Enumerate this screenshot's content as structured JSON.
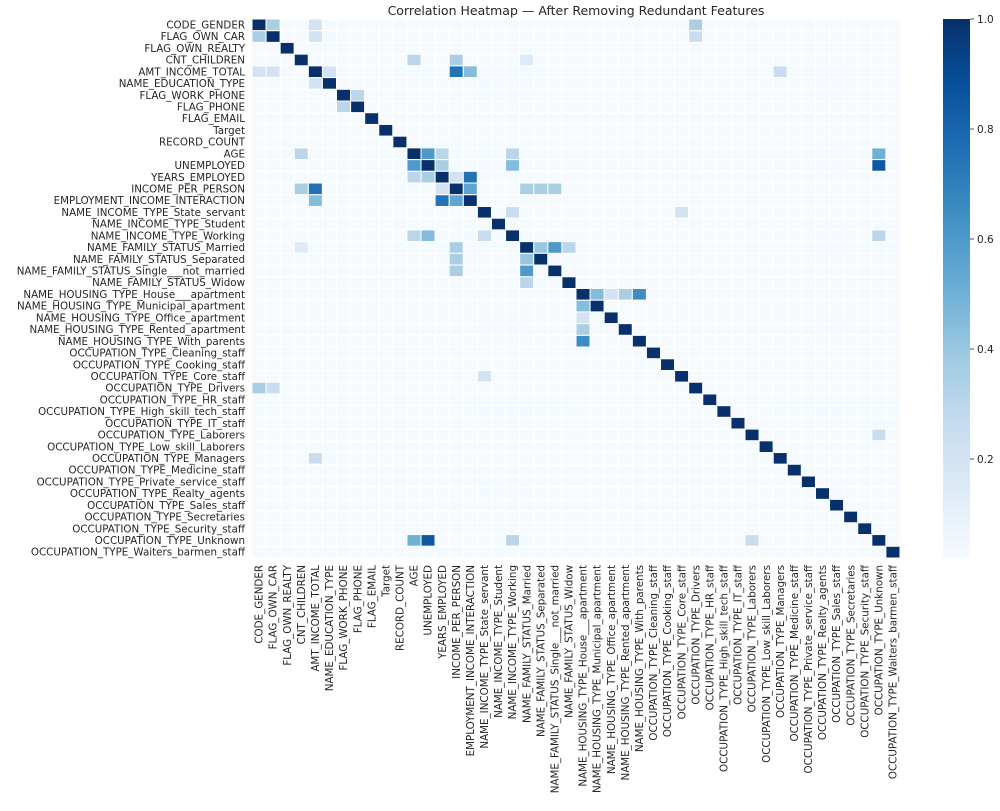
{
  "chart_data": {
    "type": "heatmap",
    "title": "Correlation Heatmap — After Removing Redundant Features",
    "xlabel": "",
    "ylabel": "",
    "labels": [
      "CODE_GENDER",
      "FLAG_OWN_CAR",
      "FLAG_OWN_REALTY",
      "CNT_CHILDREN",
      "AMT_INCOME_TOTAL",
      "NAME_EDUCATION_TYPE",
      "FLAG_WORK_PHONE",
      "FLAG_PHONE",
      "FLAG_EMAIL",
      "Target",
      "RECORD_COUNT",
      "AGE",
      "UNEMPLOYED",
      "YEARS_EMPLOYED",
      "INCOME_PER_PERSON",
      "EMPLOYMENT_INCOME_INTERACTION",
      "NAME_INCOME_TYPE_State_servant",
      "NAME_INCOME_TYPE_Student",
      "NAME_INCOME_TYPE_Working",
      "NAME_FAMILY_STATUS_Married",
      "NAME_FAMILY_STATUS_Separated",
      "NAME_FAMILY_STATUS_Single___not_married",
      "NAME_FAMILY_STATUS_Widow",
      "NAME_HOUSING_TYPE_House___apartment",
      "NAME_HOUSING_TYPE_Municipal_apartment",
      "NAME_HOUSING_TYPE_Office_apartment",
      "NAME_HOUSING_TYPE_Rented_apartment",
      "NAME_HOUSING_TYPE_With_parents",
      "OCCUPATION_TYPE_Cleaning_staff",
      "OCCUPATION_TYPE_Cooking_staff",
      "OCCUPATION_TYPE_Core_staff",
      "OCCUPATION_TYPE_Drivers",
      "OCCUPATION_TYPE_HR_staff",
      "OCCUPATION_TYPE_High_skill_tech_staff",
      "OCCUPATION_TYPE_IT_staff",
      "OCCUPATION_TYPE_Laborers",
      "OCCUPATION_TYPE_Low_skill_Laborers",
      "OCCUPATION_TYPE_Managers",
      "OCCUPATION_TYPE_Medicine_staff",
      "OCCUPATION_TYPE_Private_service_staff",
      "OCCUPATION_TYPE_Realty_agents",
      "OCCUPATION_TYPE_Sales_staff",
      "OCCUPATION_TYPE_Secretaries",
      "OCCUPATION_TYPE_Security_staff",
      "OCCUPATION_TYPE_Unknown",
      "OCCUPATION_TYPE_Waiters_barmen_staff"
    ],
    "diagonal_value": 1.0,
    "background_value": 0.03,
    "notable_correlations": [
      {
        "a": "CODE_GENDER",
        "b": "FLAG_OWN_CAR",
        "value": 0.35
      },
      {
        "a": "CODE_GENDER",
        "b": "OCCUPATION_TYPE_Drivers",
        "value": 0.35
      },
      {
        "a": "CODE_GENDER",
        "b": "AMT_INCOME_TOTAL",
        "value": 0.2
      },
      {
        "a": "FLAG_OWN_CAR",
        "b": "AMT_INCOME_TOTAL",
        "value": 0.2
      },
      {
        "a": "FLAG_OWN_CAR",
        "b": "OCCUPATION_TYPE_Drivers",
        "value": 0.25
      },
      {
        "a": "CNT_CHILDREN",
        "b": "AGE",
        "value": 0.3
      },
      {
        "a": "CNT_CHILDREN",
        "b": "INCOME_PER_PERSON",
        "value": 0.35
      },
      {
        "a": "CNT_CHILDREN",
        "b": "NAME_FAMILY_STATUS_Married",
        "value": 0.15
      },
      {
        "a": "AMT_INCOME_TOTAL",
        "b": "INCOME_PER_PERSON",
        "value": 0.75
      },
      {
        "a": "AMT_INCOME_TOTAL",
        "b": "EMPLOYMENT_INCOME_INTERACTION",
        "value": 0.45
      },
      {
        "a": "AMT_INCOME_TOTAL",
        "b": "OCCUPATION_TYPE_Managers",
        "value": 0.25
      },
      {
        "a": "AMT_INCOME_TOTAL",
        "b": "NAME_EDUCATION_TYPE",
        "value": 0.2
      },
      {
        "a": "FLAG_WORK_PHONE",
        "b": "FLAG_PHONE",
        "value": 0.3
      },
      {
        "a": "AGE",
        "b": "UNEMPLOYED",
        "value": 0.6
      },
      {
        "a": "AGE",
        "b": "YEARS_EMPLOYED",
        "value": 0.3
      },
      {
        "a": "AGE",
        "b": "OCCUPATION_TYPE_Unknown",
        "value": 0.5
      },
      {
        "a": "AGE",
        "b": "NAME_INCOME_TYPE_Working",
        "value": 0.3
      },
      {
        "a": "UNEMPLOYED",
        "b": "OCCUPATION_TYPE_Unknown",
        "value": 0.85
      },
      {
        "a": "UNEMPLOYED",
        "b": "NAME_INCOME_TYPE_Working",
        "value": 0.45
      },
      {
        "a": "UNEMPLOYED",
        "b": "YEARS_EMPLOYED",
        "value": 0.35
      },
      {
        "a": "YEARS_EMPLOYED",
        "b": "EMPLOYMENT_INCOME_INTERACTION",
        "value": 0.75
      },
      {
        "a": "YEARS_EMPLOYED",
        "b": "INCOME_PER_PERSON",
        "value": 0.2
      },
      {
        "a": "INCOME_PER_PERSON",
        "b": "EMPLOYMENT_INCOME_INTERACTION",
        "value": 0.55
      },
      {
        "a": "INCOME_PER_PERSON",
        "b": "NAME_FAMILY_STATUS_Married",
        "value": 0.35
      },
      {
        "a": "INCOME_PER_PERSON",
        "b": "NAME_FAMILY_STATUS_Separated",
        "value": 0.35
      },
      {
        "a": "INCOME_PER_PERSON",
        "b": "NAME_FAMILY_STATUS_Single___not_married",
        "value": 0.35
      },
      {
        "a": "NAME_INCOME_TYPE_State_servant",
        "b": "NAME_INCOME_TYPE_Working",
        "value": 0.25
      },
      {
        "a": "NAME_INCOME_TYPE_State_servant",
        "b": "OCCUPATION_TYPE_Core_staff",
        "value": 0.2
      },
      {
        "a": "NAME_FAMILY_STATUS_Married",
        "b": "NAME_FAMILY_STATUS_Separated",
        "value": 0.4
      },
      {
        "a": "NAME_FAMILY_STATUS_Married",
        "b": "NAME_FAMILY_STATUS_Single___not_married",
        "value": 0.6
      },
      {
        "a": "NAME_FAMILY_STATUS_Married",
        "b": "NAME_FAMILY_STATUS_Widow",
        "value": 0.3
      },
      {
        "a": "NAME_HOUSING_TYPE_House___apartment",
        "b": "NAME_HOUSING_TYPE_Municipal_apartment",
        "value": 0.45
      },
      {
        "a": "NAME_HOUSING_TYPE_House___apartment",
        "b": "NAME_HOUSING_TYPE_Office_apartment",
        "value": 0.2
      },
      {
        "a": "NAME_HOUSING_TYPE_House___apartment",
        "b": "NAME_HOUSING_TYPE_Rented_apartment",
        "value": 0.35
      },
      {
        "a": "NAME_HOUSING_TYPE_House___apartment",
        "b": "NAME_HOUSING_TYPE_With_parents",
        "value": 0.65
      },
      {
        "a": "NAME_INCOME_TYPE_Working",
        "b": "OCCUPATION_TYPE_Unknown",
        "value": 0.3
      },
      {
        "a": "OCCUPATION_TYPE_Laborers",
        "b": "OCCUPATION_TYPE_Unknown",
        "value": 0.25
      }
    ],
    "colorbar": {
      "colormap": "Blues",
      "range": [
        0.02,
        1.0
      ],
      "ticks": [
        "0.2",
        "0.4",
        "0.6",
        "0.8",
        "1.0"
      ]
    },
    "grid": false
  }
}
